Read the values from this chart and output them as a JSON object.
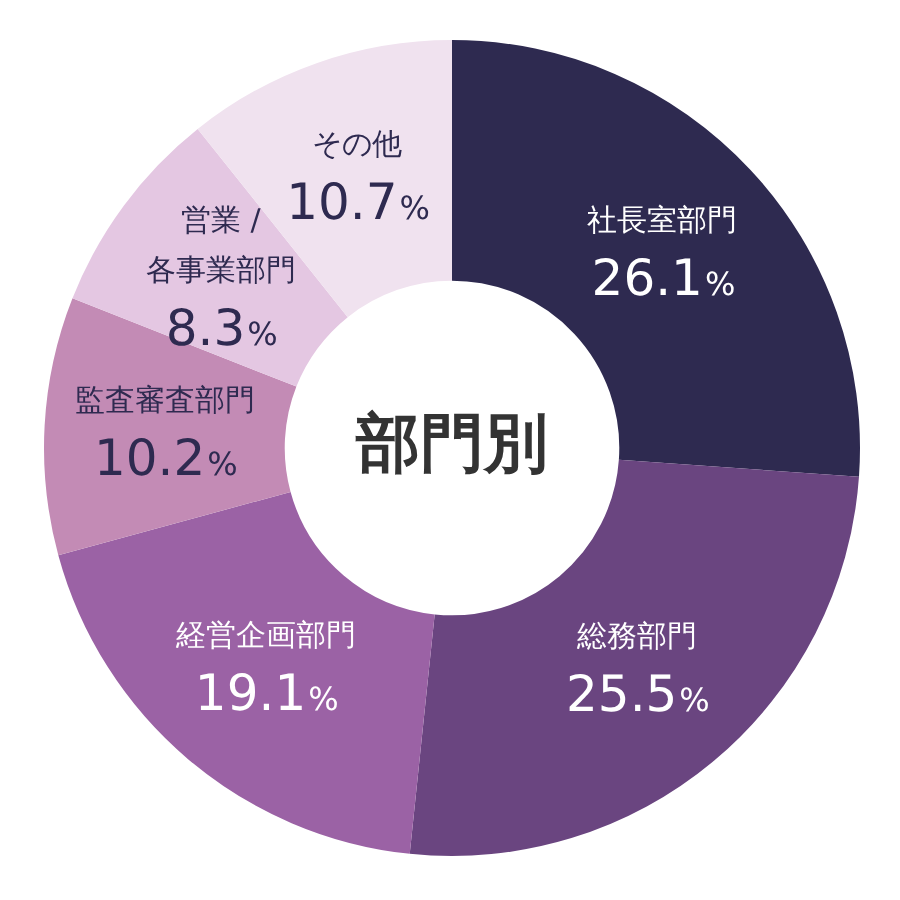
{
  "chart_data": {
    "type": "donut",
    "title": "部門別",
    "categories": [
      "社長室部門",
      "総務部門",
      "経営企画部門",
      "監査審査部門",
      "営業 /\n各事業部門",
      "その他"
    ],
    "values": [
      26.1,
      25.5,
      19.1,
      10.2,
      8.3,
      10.7
    ],
    "colors": [
      "#2e2a50",
      "#6a4580",
      "#9b62a5",
      "#c38bb5",
      "#e4c7e2",
      "#f0e2ef"
    ],
    "value_labels": [
      "26.1%",
      "25.5%",
      "19.1%",
      "10.2%",
      "8.3%",
      "10.7%"
    ],
    "legend": false
  }
}
